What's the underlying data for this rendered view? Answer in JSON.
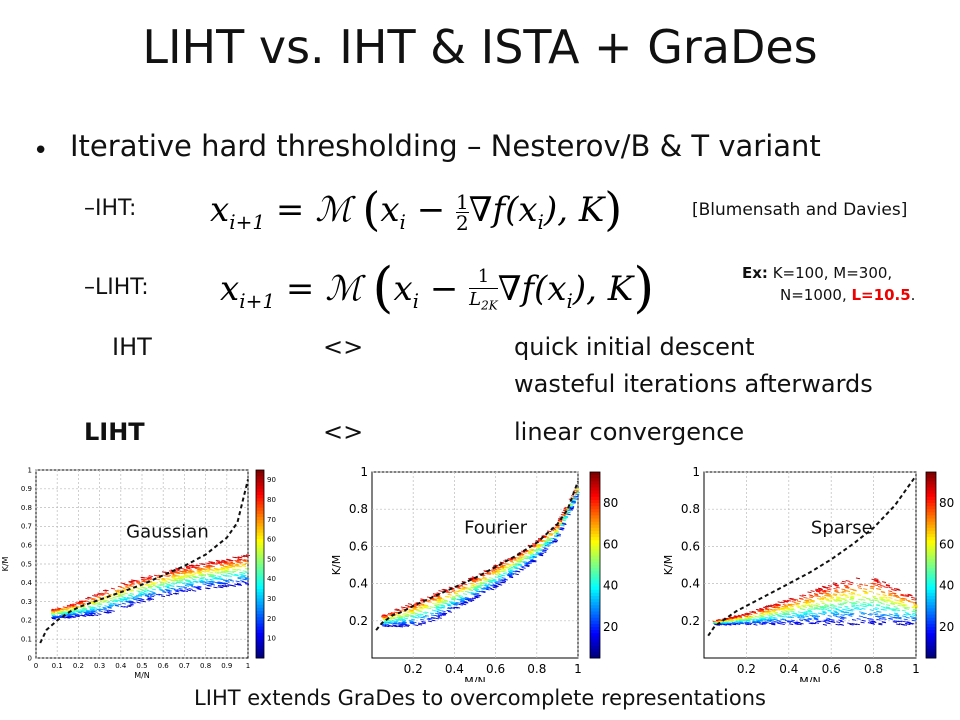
{
  "title": "LIHT vs. IHT & ISTA + GraDes",
  "bullet": "Iterative hard thresholding – Nesterov/B & T variant",
  "iht_label": "–IHT:",
  "liht_label": "–LIHT:",
  "citation": "[Blumensath and Davies]",
  "example": {
    "prefix": "Ex:",
    "line1": "K=100,  M=300,",
    "line2a": "N=1000, ",
    "line2b": "L=10.5",
    "line2c": "."
  },
  "comparison": [
    {
      "name": "IHT",
      "sep": "<>",
      "text": "quick initial descent"
    },
    {
      "name": "",
      "sep": "",
      "text": "wasteful iterations afterwards"
    },
    {
      "name": "LIHT",
      "sep": "<>",
      "text": "linear convergence"
    }
  ],
  "footer": "LIHT extends GraDes to overcomplete representations",
  "colors": {
    "curve": "#111111",
    "highlight": "#ee0000"
  },
  "chart_data": [
    {
      "type": "scatter",
      "title": "Gaussian",
      "xlabel": "M/N",
      "ylabel": "K/M",
      "xlim": [
        0,
        1
      ],
      "ylim": [
        0,
        1
      ],
      "xticks": [
        "0",
        "0.1",
        "0.2",
        "0.3",
        "0.4",
        "0.5",
        "0.6",
        "0.7",
        "0.8",
        "0.9",
        "1"
      ],
      "yticks": [
        "0",
        "0.1",
        "0.2",
        "0.3",
        "0.4",
        "0.5",
        "0.6",
        "0.7",
        "0.8",
        "0.9",
        "1"
      ],
      "colorbar_ticks": [
        "10",
        "20",
        "30",
        "40",
        "50",
        "60",
        "70",
        "80",
        "90"
      ],
      "colorbar_range": [
        0,
        95
      ],
      "grid": true,
      "curve": {
        "x": [
          0.02,
          0.05,
          0.1,
          0.15,
          0.2,
          0.3,
          0.4,
          0.5,
          0.6,
          0.7,
          0.8,
          0.9,
          0.95,
          1.0
        ],
        "y": [
          0.08,
          0.15,
          0.2,
          0.24,
          0.27,
          0.31,
          0.35,
          0.39,
          0.44,
          0.49,
          0.55,
          0.64,
          0.72,
          0.95
        ]
      },
      "band": {
        "x": [
          0.08,
          0.2,
          0.3,
          0.4,
          0.5,
          0.6,
          0.7,
          0.8,
          0.9,
          1.0
        ],
        "top": [
          0.26,
          0.3,
          0.35,
          0.4,
          0.43,
          0.46,
          0.49,
          0.51,
          0.53,
          0.55
        ],
        "bottom": [
          0.21,
          0.22,
          0.23,
          0.26,
          0.3,
          0.33,
          0.35,
          0.37,
          0.38,
          0.39
        ]
      }
    },
    {
      "type": "scatter",
      "title": "Fourier",
      "xlabel": "M/N",
      "ylabel": "K/M",
      "xlim": [
        0,
        1
      ],
      "ylim": [
        0,
        1
      ],
      "xticks": [
        "0.2",
        "0.4",
        "0.6",
        "0.8",
        "1"
      ],
      "yticks": [
        "0.2",
        "0.4",
        "0.6",
        "0.8",
        "1"
      ],
      "colorbar_ticks": [
        "20",
        "40",
        "60",
        "80"
      ],
      "colorbar_range": [
        5,
        95
      ],
      "grid": true,
      "curve": {
        "x": [
          0.02,
          0.05,
          0.1,
          0.15,
          0.2,
          0.3,
          0.4,
          0.5,
          0.6,
          0.7,
          0.8,
          0.9,
          0.95,
          1.0
        ],
        "y": [
          0.15,
          0.19,
          0.23,
          0.25,
          0.28,
          0.33,
          0.38,
          0.43,
          0.49,
          0.55,
          0.62,
          0.72,
          0.8,
          0.95
        ]
      },
      "band": {
        "x": [
          0.05,
          0.2,
          0.3,
          0.4,
          0.5,
          0.6,
          0.7,
          0.8,
          0.9,
          1.0
        ],
        "top": [
          0.23,
          0.3,
          0.35,
          0.39,
          0.44,
          0.5,
          0.56,
          0.63,
          0.72,
          0.93
        ],
        "bottom": [
          0.17,
          0.17,
          0.2,
          0.26,
          0.32,
          0.38,
          0.45,
          0.53,
          0.64,
          0.88
        ]
      }
    },
    {
      "type": "scatter",
      "title": "Sparse",
      "xlabel": "M/N",
      "ylabel": "K/M",
      "xlim": [
        0,
        1
      ],
      "ylim": [
        0,
        1
      ],
      "xticks": [
        "0.2",
        "0.4",
        "0.6",
        "0.8",
        "1"
      ],
      "yticks": [
        "0.2",
        "0.4",
        "0.6",
        "0.8",
        "1"
      ],
      "colorbar_ticks": [
        "20",
        "40",
        "60",
        "80"
      ],
      "colorbar_range": [
        5,
        95
      ],
      "grid": true,
      "curve": {
        "x": [
          0.02,
          0.05,
          0.1,
          0.15,
          0.2,
          0.3,
          0.4,
          0.5,
          0.6,
          0.7,
          0.8,
          0.9,
          0.95,
          1.0
        ],
        "y": [
          0.12,
          0.17,
          0.21,
          0.25,
          0.28,
          0.34,
          0.4,
          0.46,
          0.53,
          0.61,
          0.7,
          0.82,
          0.9,
          0.98
        ]
      },
      "band": {
        "x": [
          0.05,
          0.2,
          0.3,
          0.4,
          0.5,
          0.6,
          0.7,
          0.8,
          0.9,
          1.0
        ],
        "top": [
          0.2,
          0.24,
          0.28,
          0.32,
          0.36,
          0.4,
          0.43,
          0.44,
          0.38,
          0.33
        ],
        "bottom": [
          0.18,
          0.18,
          0.18,
          0.18,
          0.18,
          0.18,
          0.18,
          0.18,
          0.18,
          0.18
        ]
      }
    }
  ]
}
